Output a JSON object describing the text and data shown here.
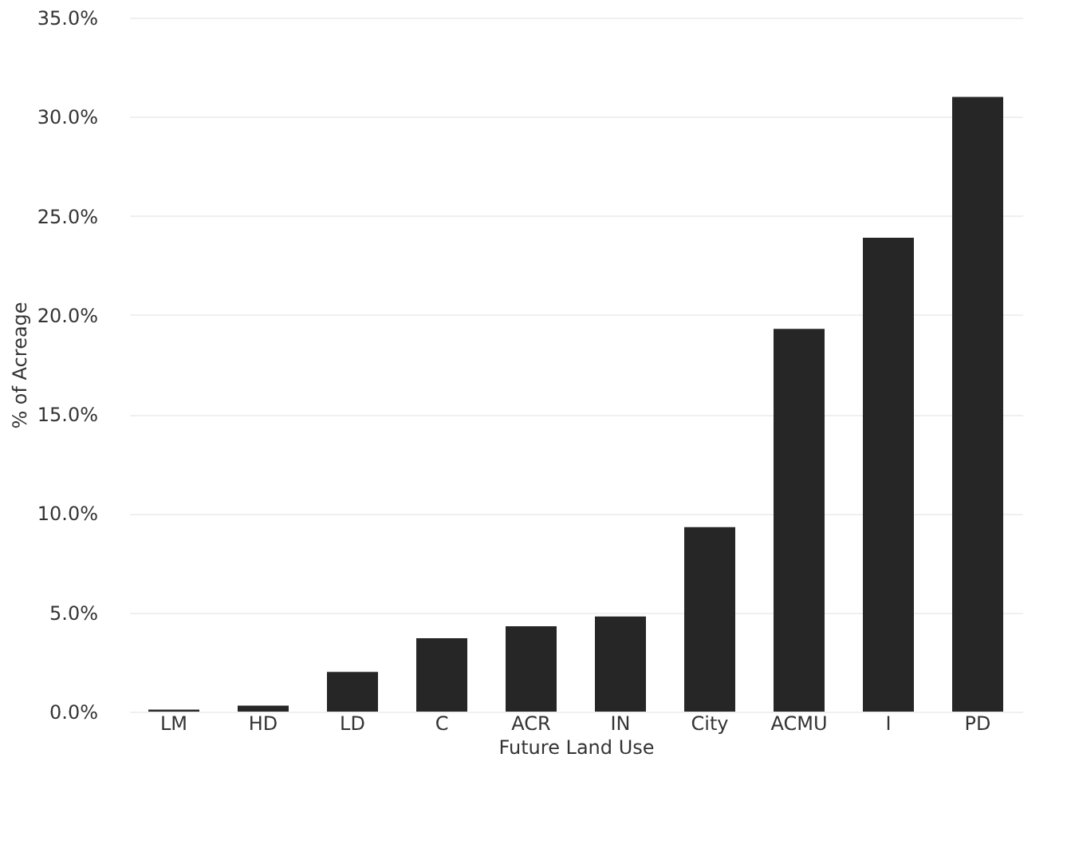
{
  "chart_data": {
    "type": "bar",
    "xlabel": "Future Land Use",
    "ylabel": "% of Acreage",
    "categories": [
      "LM",
      "HD",
      "LD",
      "C",
      "ACR",
      "IN",
      "City",
      "ACMU",
      "I",
      "PD"
    ],
    "values": [
      0.1,
      0.3,
      2.0,
      3.7,
      4.3,
      4.8,
      9.3,
      19.3,
      23.9,
      31.0
    ],
    "color": "#262626",
    "ylim": [
      0,
      35
    ],
    "yticks": [
      {
        "value": 0,
        "label": "0.0%"
      },
      {
        "value": 5,
        "label": "5.0%"
      },
      {
        "value": 10,
        "label": "10.0%"
      },
      {
        "value": 15,
        "label": "15.0%"
      },
      {
        "value": 20,
        "label": "20.0%"
      },
      {
        "value": 25,
        "label": "25.0%"
      },
      {
        "value": 30,
        "label": "30.0%"
      },
      {
        "value": 35,
        "label": "35.0%"
      }
    ],
    "grid": "y"
  }
}
